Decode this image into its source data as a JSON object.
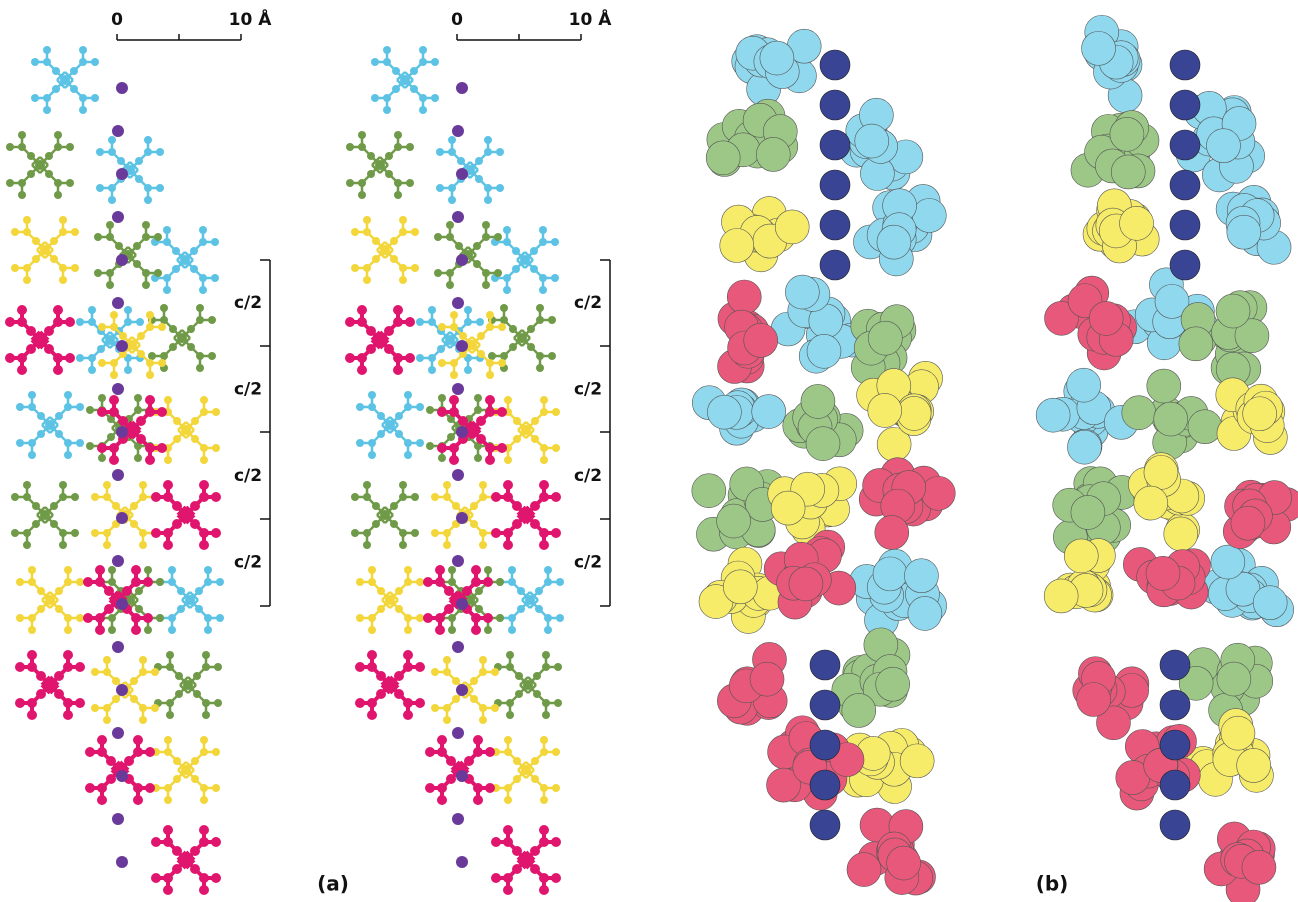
{
  "panel_a": {
    "label": "(a)",
    "views": [
      {
        "scale_bar": {
          "start": "0",
          "end": "10 Å"
        },
        "repeat_labels": [
          "c/2",
          "c/2",
          "c/2",
          "c/2"
        ]
      },
      {
        "scale_bar": {
          "start": "0",
          "end": "10 Å"
        },
        "repeat_labels": [
          "c/2",
          "c/2",
          "c/2",
          "c/2"
        ]
      }
    ]
  },
  "panel_b": {
    "label": "(b)"
  }
}
